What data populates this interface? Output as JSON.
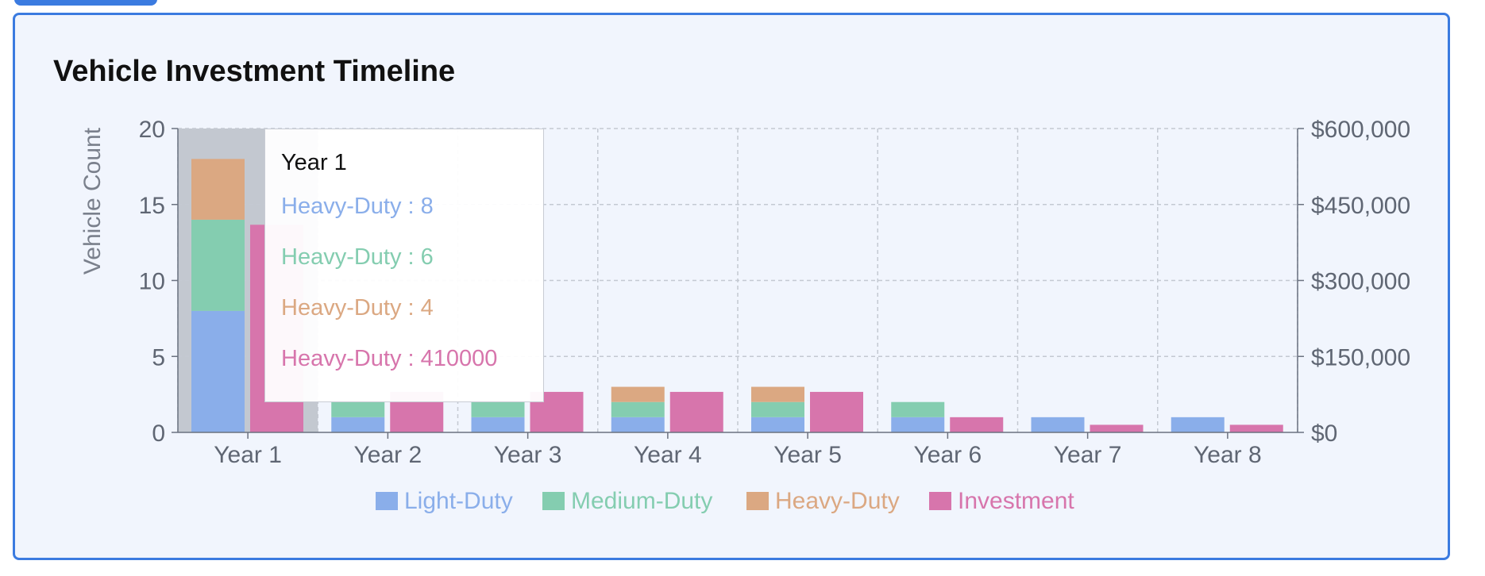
{
  "card": {
    "title": "Vehicle Investment Timeline"
  },
  "colors": {
    "light_duty": "#8aaeea",
    "medium_duty": "#84cdb0",
    "heavy_duty": "#dba882",
    "investment": "#d775ac",
    "hover_band": "#c3c8d0",
    "accent": "#3b7be0"
  },
  "tooltip": {
    "title": "Year 1",
    "rows": [
      {
        "label": "Heavy-Duty : 8",
        "color": "#8aaeea"
      },
      {
        "label": "Heavy-Duty : 6",
        "color": "#84cdb0"
      },
      {
        "label": "Heavy-Duty : 4",
        "color": "#dba882"
      },
      {
        "label": "Heavy-Duty : 410000",
        "color": "#d775ac"
      }
    ]
  },
  "chart_data": {
    "type": "bar",
    "title": "Vehicle Investment Timeline",
    "categories": [
      "Year 1",
      "Year 2",
      "Year 3",
      "Year 4",
      "Year 5",
      "Year 6",
      "Year 7",
      "Year 8"
    ],
    "stacked_series": [
      {
        "name": "Light-Duty",
        "values": [
          8,
          1,
          1,
          1,
          1,
          1,
          1,
          1
        ]
      },
      {
        "name": "Medium-Duty",
        "values": [
          6,
          1,
          1,
          1,
          1,
          1,
          0,
          0
        ]
      },
      {
        "name": "Heavy-Duty",
        "values": [
          4,
          0,
          0,
          1,
          1,
          0,
          0,
          0
        ]
      }
    ],
    "investment_series": {
      "name": "Investment",
      "values": [
        410000,
        80000,
        80000,
        80000,
        80000,
        30000,
        15000,
        15000
      ]
    },
    "ylabel_left": "Vehicle Count",
    "ylim_left": [
      0,
      20
    ],
    "yticks_left": [
      "0",
      "5",
      "10",
      "15",
      "20"
    ],
    "ylim_right": [
      0,
      600000
    ],
    "yticks_right": [
      "$0",
      "$150,000",
      "$300,000",
      "$450,000",
      "$600,000"
    ],
    "grid": true,
    "legend_position": "bottom",
    "highlighted_category": "Year 1"
  }
}
